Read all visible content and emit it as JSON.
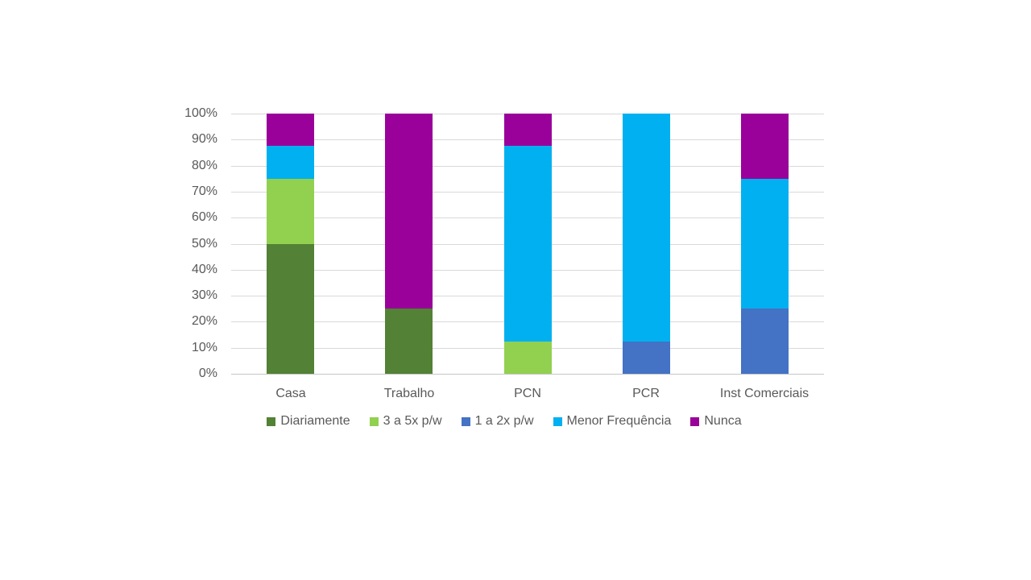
{
  "chart_data": {
    "type": "bar",
    "variant": "stacked-100-percent",
    "title": "",
    "xlabel": "",
    "ylabel": "",
    "categories": [
      "Casa",
      "Trabalho",
      "PCN",
      "PCR",
      "Inst Comerciais"
    ],
    "series": [
      {
        "name": "Diariamente",
        "color": "#538135",
        "values": [
          50,
          25,
          0,
          0,
          0
        ]
      },
      {
        "name": "3 a 5x p/w",
        "color": "#92d050",
        "values": [
          25,
          0,
          12.5,
          0,
          0
        ]
      },
      {
        "name": "1 a 2x p/w",
        "color": "#4472c4",
        "values": [
          0,
          0,
          0,
          12.5,
          25
        ]
      },
      {
        "name": "Menor Frequência",
        "color": "#00b0f0",
        "values": [
          12.5,
          0,
          75,
          87.5,
          50
        ]
      },
      {
        "name": "Nunca",
        "color": "#9a009a",
        "values": [
          12.5,
          75,
          12.5,
          0,
          25
        ]
      }
    ],
    "y_axis": {
      "min": 0,
      "max": 100,
      "step": 10,
      "tick_labels": [
        "0%",
        "10%",
        "20%",
        "30%",
        "40%",
        "50%",
        "60%",
        "70%",
        "80%",
        "90%",
        "100%"
      ]
    },
    "grid": true,
    "legend_position": "bottom",
    "colors": {
      "gridline": "#d9d9d9",
      "axis_baseline": "#c6c6c6",
      "axis_text": "#595959",
      "background": "#ffffff"
    }
  }
}
